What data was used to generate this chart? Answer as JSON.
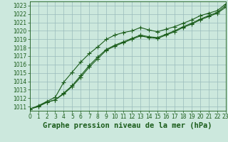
{
  "title": "Graphe pression niveau de la mer (hPa)",
  "bg_color": "#cce8dd",
  "grid_color": "#99bbbb",
  "line_color": "#1a5c1a",
  "xlim": [
    0,
    23
  ],
  "ylim": [
    1010.5,
    1023.5
  ],
  "yticks": [
    1011,
    1012,
    1013,
    1014,
    1015,
    1016,
    1017,
    1018,
    1019,
    1020,
    1021,
    1022,
    1023
  ],
  "xticks": [
    0,
    1,
    2,
    3,
    4,
    5,
    6,
    7,
    8,
    9,
    10,
    11,
    12,
    13,
    14,
    15,
    16,
    17,
    18,
    19,
    20,
    21,
    22,
    23
  ],
  "series1": [
    1010.7,
    1011.1,
    1011.6,
    1012.1,
    1013.9,
    1015.1,
    1016.3,
    1017.3,
    1018.1,
    1019.0,
    1019.5,
    1019.8,
    1020.0,
    1020.4,
    1020.1,
    1019.9,
    1020.2,
    1020.5,
    1020.9,
    1021.3,
    1021.8,
    1022.1,
    1022.4,
    1023.2
  ],
  "series2": [
    1010.7,
    1011.0,
    1011.5,
    1011.8,
    1012.6,
    1013.5,
    1014.7,
    1015.9,
    1016.9,
    1017.8,
    1018.3,
    1018.7,
    1019.1,
    1019.5,
    1019.3,
    1019.2,
    1019.6,
    1020.0,
    1020.5,
    1020.9,
    1021.4,
    1021.8,
    1022.2,
    1023.0
  ],
  "series3": [
    1010.7,
    1011.0,
    1011.5,
    1011.8,
    1012.5,
    1013.4,
    1014.5,
    1015.7,
    1016.7,
    1017.7,
    1018.2,
    1018.6,
    1019.0,
    1019.4,
    1019.2,
    1019.1,
    1019.5,
    1019.9,
    1020.4,
    1020.8,
    1021.3,
    1021.7,
    1022.1,
    1022.8
  ],
  "title_fontsize": 7.5,
  "tick_fontsize": 5.5
}
